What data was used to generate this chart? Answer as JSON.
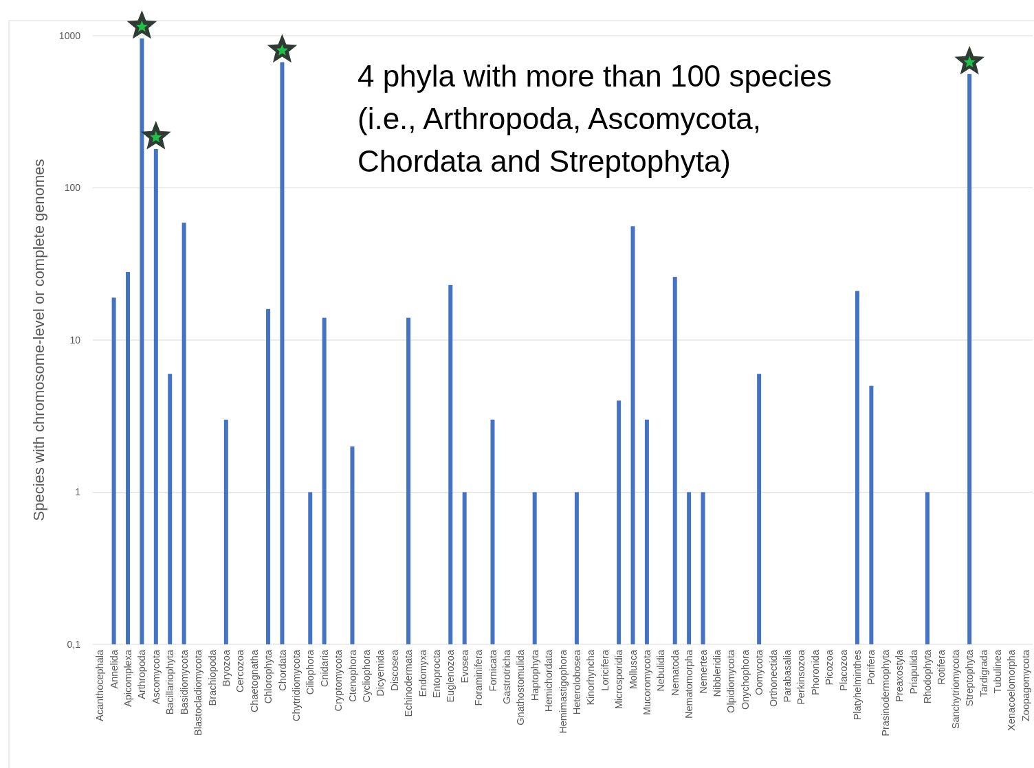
{
  "chart_data": {
    "type": "bar",
    "log": true,
    "grid": "y",
    "ylabel": "Species with chromosome-level  or complete genomes",
    "annotations": [
      "4 phyla with more than 100 species\n(i.e., Arthropoda, Ascomycota,\nChordata and Streptophyta)"
    ],
    "categories": [
      "Acanthocephala",
      "Annelida",
      "Apicomplexa",
      "Arthropoda",
      "Ascomycota",
      "Bacillariophyta",
      "Basidiomycota",
      "Blastocladiomycota",
      "Brachiopoda",
      "Bryozoa",
      "Cercozoa",
      "Chaetognatha",
      "Chlorophyta",
      "Chordata",
      "Chytridiomycota",
      "Ciliophora",
      "Cnidaria",
      "Cryptomycota",
      "Ctenophora",
      "Cycliophora",
      "Dicyemida",
      "Discosea",
      "Echinodermata",
      "Endomyxa",
      "Entoprocta",
      "Euglenozoa",
      "Evosea",
      "Foraminifera",
      "Fornicata",
      "Gastrotricha",
      "Gnathostomulida",
      "Haptophyta",
      "Hemichordata",
      "Hemimastigophora",
      "Heterolobosea",
      "Kinorhyncha",
      "Loricifera",
      "Microsporidia",
      "Mollusca",
      "Mucoromycota",
      "Nebulidia",
      "Nematoda",
      "Nematomorpha",
      "Nemertea",
      "Nibbleridia",
      "Olpidiomycota",
      "Onychophora",
      "Oomycota",
      "Orthonectida",
      "Parabasalia",
      "Perkinsozoa",
      "Phoronida",
      "Picozoa",
      "Placozoa",
      "Platyhelminthes",
      "Porifera",
      "Prasinodermophyta",
      "Preaxostyla",
      "Priapulida",
      "Rhodophyta",
      "Rotifera",
      "Sanchytriomycota",
      "Streptophyta",
      "Tardigrada",
      "Tubulinea",
      "Xenacoelomorpha",
      "Zoopagomycota"
    ],
    "values": [
      null,
      19,
      28,
      960,
      180,
      6,
      59,
      null,
      null,
      3,
      null,
      null,
      16,
      670,
      null,
      1,
      14,
      null,
      2,
      null,
      null,
      null,
      14,
      null,
      null,
      23,
      1,
      null,
      3,
      null,
      null,
      1,
      null,
      null,
      1,
      null,
      null,
      4,
      56,
      3,
      null,
      26,
      1,
      1,
      null,
      null,
      null,
      6,
      null,
      null,
      null,
      null,
      null,
      null,
      21,
      5,
      null,
      null,
      null,
      1,
      null,
      null,
      560,
      null,
      null,
      null,
      null
    ],
    "color": "#4472c4",
    "ylim": [
      0.1,
      1000
    ],
    "yticks": [
      {
        "value": 0.1,
        "label": "0,1"
      },
      1,
      10,
      100,
      1000
    ]
  }
}
